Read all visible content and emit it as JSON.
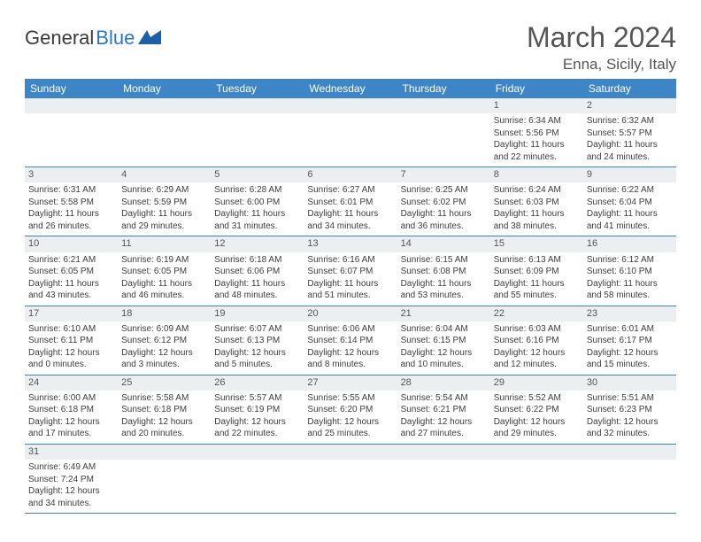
{
  "brand": {
    "part1": "General",
    "part2": "Blue"
  },
  "title": "March 2024",
  "subtitle": "Enna, Sicily, Italy",
  "colors": {
    "header_bg": "#3d85c6",
    "stripe_bg": "#eceff1",
    "rule": "#3d85c6",
    "text": "#3d3d3d"
  },
  "weekday_labels": [
    "Sunday",
    "Monday",
    "Tuesday",
    "Wednesday",
    "Thursday",
    "Friday",
    "Saturday"
  ],
  "weeks": [
    [
      {
        "n": "",
        "sr": "",
        "ss": "",
        "dl": ""
      },
      {
        "n": "",
        "sr": "",
        "ss": "",
        "dl": ""
      },
      {
        "n": "",
        "sr": "",
        "ss": "",
        "dl": ""
      },
      {
        "n": "",
        "sr": "",
        "ss": "",
        "dl": ""
      },
      {
        "n": "",
        "sr": "",
        "ss": "",
        "dl": ""
      },
      {
        "n": "1",
        "sr": "Sunrise: 6:34 AM",
        "ss": "Sunset: 5:56 PM",
        "dl": "Daylight: 11 hours and 22 minutes."
      },
      {
        "n": "2",
        "sr": "Sunrise: 6:32 AM",
        "ss": "Sunset: 5:57 PM",
        "dl": "Daylight: 11 hours and 24 minutes."
      }
    ],
    [
      {
        "n": "3",
        "sr": "Sunrise: 6:31 AM",
        "ss": "Sunset: 5:58 PM",
        "dl": "Daylight: 11 hours and 26 minutes."
      },
      {
        "n": "4",
        "sr": "Sunrise: 6:29 AM",
        "ss": "Sunset: 5:59 PM",
        "dl": "Daylight: 11 hours and 29 minutes."
      },
      {
        "n": "5",
        "sr": "Sunrise: 6:28 AM",
        "ss": "Sunset: 6:00 PM",
        "dl": "Daylight: 11 hours and 31 minutes."
      },
      {
        "n": "6",
        "sr": "Sunrise: 6:27 AM",
        "ss": "Sunset: 6:01 PM",
        "dl": "Daylight: 11 hours and 34 minutes."
      },
      {
        "n": "7",
        "sr": "Sunrise: 6:25 AM",
        "ss": "Sunset: 6:02 PM",
        "dl": "Daylight: 11 hours and 36 minutes."
      },
      {
        "n": "8",
        "sr": "Sunrise: 6:24 AM",
        "ss": "Sunset: 6:03 PM",
        "dl": "Daylight: 11 hours and 38 minutes."
      },
      {
        "n": "9",
        "sr": "Sunrise: 6:22 AM",
        "ss": "Sunset: 6:04 PM",
        "dl": "Daylight: 11 hours and 41 minutes."
      }
    ],
    [
      {
        "n": "10",
        "sr": "Sunrise: 6:21 AM",
        "ss": "Sunset: 6:05 PM",
        "dl": "Daylight: 11 hours and 43 minutes."
      },
      {
        "n": "11",
        "sr": "Sunrise: 6:19 AM",
        "ss": "Sunset: 6:05 PM",
        "dl": "Daylight: 11 hours and 46 minutes."
      },
      {
        "n": "12",
        "sr": "Sunrise: 6:18 AM",
        "ss": "Sunset: 6:06 PM",
        "dl": "Daylight: 11 hours and 48 minutes."
      },
      {
        "n": "13",
        "sr": "Sunrise: 6:16 AM",
        "ss": "Sunset: 6:07 PM",
        "dl": "Daylight: 11 hours and 51 minutes."
      },
      {
        "n": "14",
        "sr": "Sunrise: 6:15 AM",
        "ss": "Sunset: 6:08 PM",
        "dl": "Daylight: 11 hours and 53 minutes."
      },
      {
        "n": "15",
        "sr": "Sunrise: 6:13 AM",
        "ss": "Sunset: 6:09 PM",
        "dl": "Daylight: 11 hours and 55 minutes."
      },
      {
        "n": "16",
        "sr": "Sunrise: 6:12 AM",
        "ss": "Sunset: 6:10 PM",
        "dl": "Daylight: 11 hours and 58 minutes."
      }
    ],
    [
      {
        "n": "17",
        "sr": "Sunrise: 6:10 AM",
        "ss": "Sunset: 6:11 PM",
        "dl": "Daylight: 12 hours and 0 minutes."
      },
      {
        "n": "18",
        "sr": "Sunrise: 6:09 AM",
        "ss": "Sunset: 6:12 PM",
        "dl": "Daylight: 12 hours and 3 minutes."
      },
      {
        "n": "19",
        "sr": "Sunrise: 6:07 AM",
        "ss": "Sunset: 6:13 PM",
        "dl": "Daylight: 12 hours and 5 minutes."
      },
      {
        "n": "20",
        "sr": "Sunrise: 6:06 AM",
        "ss": "Sunset: 6:14 PM",
        "dl": "Daylight: 12 hours and 8 minutes."
      },
      {
        "n": "21",
        "sr": "Sunrise: 6:04 AM",
        "ss": "Sunset: 6:15 PM",
        "dl": "Daylight: 12 hours and 10 minutes."
      },
      {
        "n": "22",
        "sr": "Sunrise: 6:03 AM",
        "ss": "Sunset: 6:16 PM",
        "dl": "Daylight: 12 hours and 12 minutes."
      },
      {
        "n": "23",
        "sr": "Sunrise: 6:01 AM",
        "ss": "Sunset: 6:17 PM",
        "dl": "Daylight: 12 hours and 15 minutes."
      }
    ],
    [
      {
        "n": "24",
        "sr": "Sunrise: 6:00 AM",
        "ss": "Sunset: 6:18 PM",
        "dl": "Daylight: 12 hours and 17 minutes."
      },
      {
        "n": "25",
        "sr": "Sunrise: 5:58 AM",
        "ss": "Sunset: 6:18 PM",
        "dl": "Daylight: 12 hours and 20 minutes."
      },
      {
        "n": "26",
        "sr": "Sunrise: 5:57 AM",
        "ss": "Sunset: 6:19 PM",
        "dl": "Daylight: 12 hours and 22 minutes."
      },
      {
        "n": "27",
        "sr": "Sunrise: 5:55 AM",
        "ss": "Sunset: 6:20 PM",
        "dl": "Daylight: 12 hours and 25 minutes."
      },
      {
        "n": "28",
        "sr": "Sunrise: 5:54 AM",
        "ss": "Sunset: 6:21 PM",
        "dl": "Daylight: 12 hours and 27 minutes."
      },
      {
        "n": "29",
        "sr": "Sunrise: 5:52 AM",
        "ss": "Sunset: 6:22 PM",
        "dl": "Daylight: 12 hours and 29 minutes."
      },
      {
        "n": "30",
        "sr": "Sunrise: 5:51 AM",
        "ss": "Sunset: 6:23 PM",
        "dl": "Daylight: 12 hours and 32 minutes."
      }
    ],
    [
      {
        "n": "31",
        "sr": "Sunrise: 6:49 AM",
        "ss": "Sunset: 7:24 PM",
        "dl": "Daylight: 12 hours and 34 minutes."
      },
      {
        "n": "",
        "sr": "",
        "ss": "",
        "dl": ""
      },
      {
        "n": "",
        "sr": "",
        "ss": "",
        "dl": ""
      },
      {
        "n": "",
        "sr": "",
        "ss": "",
        "dl": ""
      },
      {
        "n": "",
        "sr": "",
        "ss": "",
        "dl": ""
      },
      {
        "n": "",
        "sr": "",
        "ss": "",
        "dl": ""
      },
      {
        "n": "",
        "sr": "",
        "ss": "",
        "dl": ""
      }
    ]
  ]
}
